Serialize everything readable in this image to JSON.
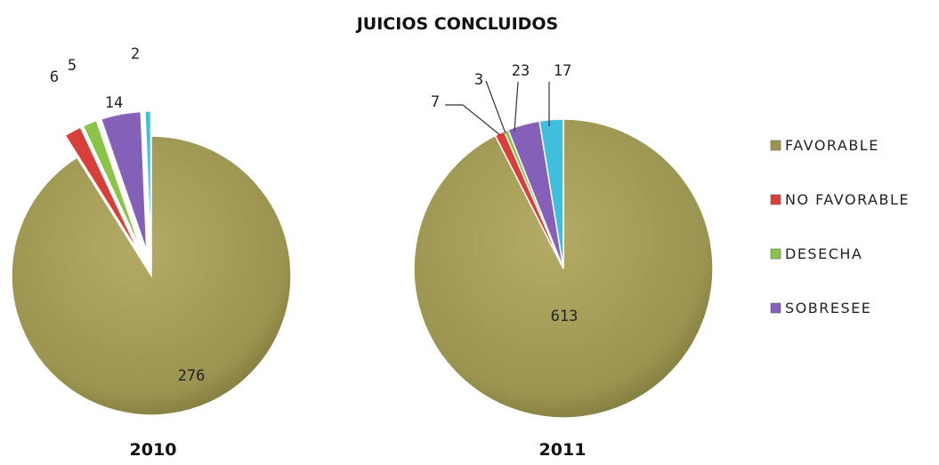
{
  "title": "JUICIOS CONCLUIDOS",
  "chart_data": {
    "type": "pie",
    "title": "JUICIOS CONCLUIDOS",
    "categories": [
      "FAVORABLE",
      "NO FAVORABLE",
      "DESECHA",
      "SOBRESEE",
      ""
    ],
    "colors": [
      "#9b9450",
      "#d93f3a",
      "#8cc44a",
      "#8560b8",
      "#3fbfdd"
    ],
    "legend_position": "right",
    "series": [
      {
        "name": "2010",
        "values": [
          276,
          6,
          5,
          14,
          2
        ]
      },
      {
        "name": "2011",
        "values": [
          613,
          7,
          3,
          23,
          17
        ]
      }
    ],
    "legend": [
      "FAVORABLE",
      "NO FAVORABLE",
      "DESECHA",
      "SOBRESEE"
    ]
  }
}
